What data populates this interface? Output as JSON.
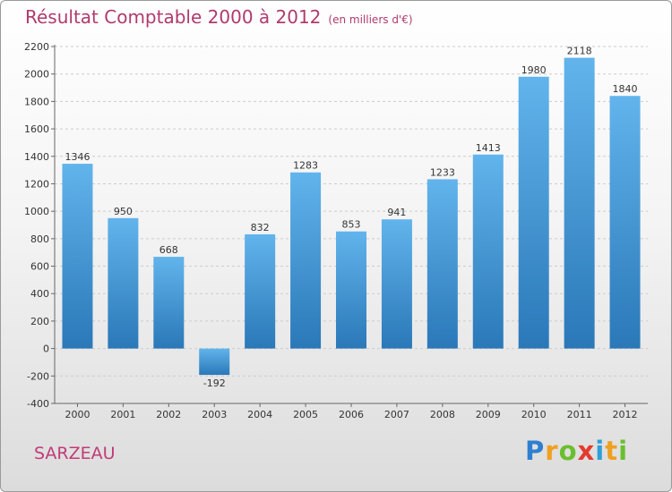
{
  "title": "Résultat Comptable 2000 à 2012",
  "subtitle": "(en milliers d'€)",
  "location": "SARZEAU",
  "logo": {
    "letters": [
      "P",
      "r",
      "o",
      "x",
      "i",
      "t",
      "i"
    ],
    "colors": [
      "#2f7fd0",
      "#f0a020",
      "#6abf2e",
      "#e33b2f",
      "#2f9fd8",
      "#f0a020",
      "#6abf2e"
    ]
  },
  "colors": {
    "bar_light": "#62b4ec",
    "bar_dark": "#2a78b8",
    "grid": "#cccccc",
    "text": "#333333"
  },
  "chart_data": {
    "type": "bar",
    "title": "Résultat Comptable 2000 à 2012",
    "unit": "(en milliers d'€)",
    "categories": [
      "2000",
      "2001",
      "2002",
      "2003",
      "2004",
      "2005",
      "2006",
      "2007",
      "2008",
      "2009",
      "2010",
      "2011",
      "2012"
    ],
    "values": [
      1346,
      950,
      668,
      -192,
      832,
      1283,
      853,
      941,
      1233,
      1413,
      1980,
      2118,
      1840
    ],
    "value_labels": [
      "1346",
      "950",
      "668",
      "-192",
      "832",
      "1283",
      "853",
      "941",
      "1233",
      "1413",
      "1980",
      "2118",
      "1840"
    ],
    "y_ticks": [
      -400,
      -200,
      0,
      200,
      400,
      600,
      800,
      1000,
      1200,
      1400,
      1600,
      1800,
      2000,
      2200
    ],
    "ylim": [
      -400,
      2200
    ],
    "xlabel": "",
    "ylabel": "",
    "grid": true
  }
}
